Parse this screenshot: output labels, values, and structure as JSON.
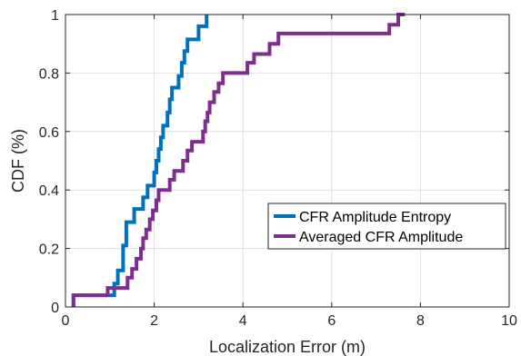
{
  "chart_data": {
    "type": "line",
    "xlabel": "Localization Error (m)",
    "ylabel": "CDF (%)",
    "xlim": [
      0,
      10
    ],
    "ylim": [
      0,
      1
    ],
    "xticks": [
      "0",
      "2",
      "4",
      "6",
      "8",
      "10"
    ],
    "yticks": [
      "0",
      "0.2",
      "0.4",
      "0.6",
      "0.8",
      "1"
    ],
    "grid": true,
    "legend_position": "lower-right",
    "series": [
      {
        "name": "CFR Amplitude Entropy",
        "color": "#0072BD",
        "step_points": [
          [
            0.18,
            0.0
          ],
          [
            0.18,
            0.04
          ],
          [
            1.1,
            0.04
          ],
          [
            1.1,
            0.08
          ],
          [
            1.18,
            0.08
          ],
          [
            1.18,
            0.125
          ],
          [
            1.3,
            0.125
          ],
          [
            1.3,
            0.21
          ],
          [
            1.37,
            0.21
          ],
          [
            1.37,
            0.29
          ],
          [
            1.55,
            0.29
          ],
          [
            1.55,
            0.335
          ],
          [
            1.75,
            0.335
          ],
          [
            1.75,
            0.375
          ],
          [
            1.85,
            0.375
          ],
          [
            1.85,
            0.415
          ],
          [
            2.0,
            0.415
          ],
          [
            2.0,
            0.46
          ],
          [
            2.05,
            0.46
          ],
          [
            2.05,
            0.5
          ],
          [
            2.1,
            0.5
          ],
          [
            2.1,
            0.54
          ],
          [
            2.15,
            0.54
          ],
          [
            2.15,
            0.58
          ],
          [
            2.2,
            0.58
          ],
          [
            2.2,
            0.62
          ],
          [
            2.3,
            0.62
          ],
          [
            2.3,
            0.665
          ],
          [
            2.35,
            0.665
          ],
          [
            2.35,
            0.71
          ],
          [
            2.4,
            0.71
          ],
          [
            2.4,
            0.75
          ],
          [
            2.55,
            0.75
          ],
          [
            2.55,
            0.79
          ],
          [
            2.62,
            0.79
          ],
          [
            2.62,
            0.835
          ],
          [
            2.68,
            0.835
          ],
          [
            2.68,
            0.875
          ],
          [
            2.75,
            0.875
          ],
          [
            2.75,
            0.915
          ],
          [
            3.0,
            0.915
          ],
          [
            3.0,
            0.96
          ],
          [
            3.18,
            0.96
          ],
          [
            3.18,
            1.0
          ]
        ]
      },
      {
        "name": "Averaged CFR Amplitude",
        "color": "#7E2F8E",
        "step_points": [
          [
            0.18,
            0.0
          ],
          [
            0.18,
            0.04
          ],
          [
            0.95,
            0.04
          ],
          [
            0.95,
            0.065
          ],
          [
            1.4,
            0.065
          ],
          [
            1.4,
            0.1
          ],
          [
            1.5,
            0.1
          ],
          [
            1.5,
            0.13
          ],
          [
            1.6,
            0.13
          ],
          [
            1.6,
            0.165
          ],
          [
            1.7,
            0.165
          ],
          [
            1.7,
            0.2
          ],
          [
            1.75,
            0.2
          ],
          [
            1.75,
            0.235
          ],
          [
            1.82,
            0.235
          ],
          [
            1.82,
            0.265
          ],
          [
            1.9,
            0.265
          ],
          [
            1.9,
            0.3
          ],
          [
            1.97,
            0.3
          ],
          [
            1.97,
            0.33
          ],
          [
            2.05,
            0.33
          ],
          [
            2.05,
            0.365
          ],
          [
            2.1,
            0.365
          ],
          [
            2.1,
            0.4
          ],
          [
            2.35,
            0.4
          ],
          [
            2.35,
            0.435
          ],
          [
            2.45,
            0.435
          ],
          [
            2.45,
            0.465
          ],
          [
            2.65,
            0.465
          ],
          [
            2.65,
            0.5
          ],
          [
            2.75,
            0.5
          ],
          [
            2.75,
            0.535
          ],
          [
            2.85,
            0.535
          ],
          [
            2.85,
            0.565
          ],
          [
            3.1,
            0.565
          ],
          [
            3.1,
            0.6
          ],
          [
            3.15,
            0.6
          ],
          [
            3.15,
            0.635
          ],
          [
            3.2,
            0.635
          ],
          [
            3.2,
            0.665
          ],
          [
            3.25,
            0.665
          ],
          [
            3.25,
            0.7
          ],
          [
            3.35,
            0.7
          ],
          [
            3.35,
            0.735
          ],
          [
            3.45,
            0.735
          ],
          [
            3.45,
            0.765
          ],
          [
            3.55,
            0.765
          ],
          [
            3.55,
            0.8
          ],
          [
            4.1,
            0.8
          ],
          [
            4.1,
            0.835
          ],
          [
            4.25,
            0.835
          ],
          [
            4.25,
            0.865
          ],
          [
            4.6,
            0.865
          ],
          [
            4.6,
            0.9
          ],
          [
            4.8,
            0.9
          ],
          [
            4.8,
            0.935
          ],
          [
            7.3,
            0.935
          ],
          [
            7.3,
            0.965
          ],
          [
            7.5,
            0.965
          ],
          [
            7.5,
            1.0
          ],
          [
            7.65,
            1.0
          ]
        ]
      }
    ]
  }
}
